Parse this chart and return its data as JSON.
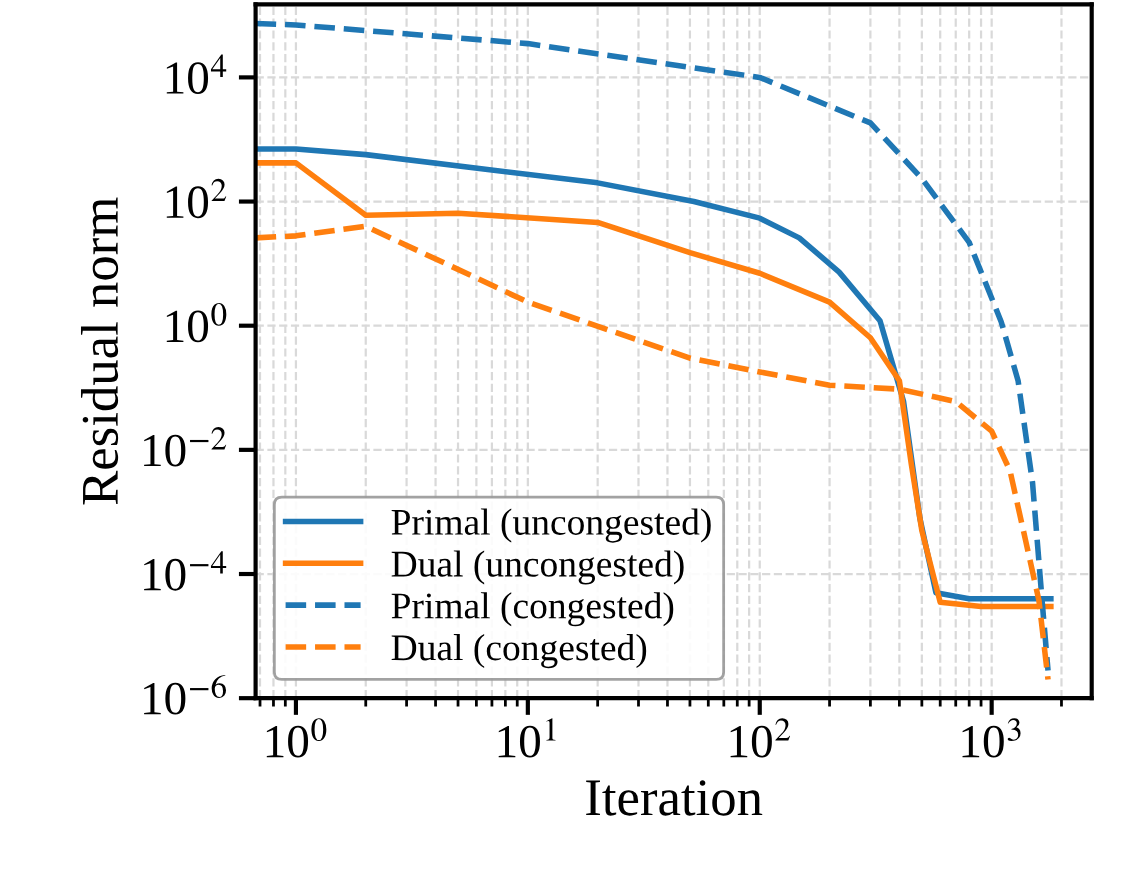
{
  "chart_data": {
    "type": "line",
    "xlabel": "Iteration",
    "ylabel": "Residual norm",
    "log": "xy",
    "grid": true,
    "legend": "bottom left",
    "xlim": [
      0.67,
      2700
    ],
    "ylim": [
      1e-06,
      150000
    ],
    "xticks": [
      {
        "value": 1,
        "label": "10$^{0}$"
      },
      {
        "value": 10,
        "label": "10$^{1}$"
      },
      {
        "value": 100,
        "label": "10$^{2}$"
      },
      {
        "value": 1000,
        "label": "10$^{3}$"
      }
    ],
    "yticks": [
      {
        "value": 1e-06,
        "label": "10$^{−6}$"
      },
      {
        "value": 0.0001,
        "label": "10$^{−4}$"
      },
      {
        "value": 0.01,
        "label": "10$^{−2}$"
      },
      {
        "value": 1,
        "label": "10$^{0}$"
      },
      {
        "value": 100,
        "label": "10$^{2}$"
      },
      {
        "value": 10000,
        "label": "10$^{4}$"
      }
    ],
    "series": [
      {
        "name": "Primal (uncongested)",
        "color": "#1f77b4",
        "line_style": "solid",
        "x": [
          0.67,
          1,
          2,
          20,
          52,
          100,
          148,
          220,
          330,
          417,
          490,
          575,
          800,
          1200,
          1800
        ],
        "values": [
          700,
          700,
          570,
          200,
          100,
          54,
          26,
          7.3,
          1.2,
          0.06,
          0.0008,
          5e-05,
          4e-05,
          4e-05,
          4e-05
        ]
      },
      {
        "name": "Dual (uncongested)",
        "color": "#ff7f0e",
        "line_style": "solid",
        "x": [
          0.67,
          1,
          2,
          5,
          20,
          50,
          100,
          200,
          300,
          400,
          450,
          500,
          600,
          900,
          1800
        ],
        "values": [
          420,
          420,
          60,
          65,
          46,
          15,
          7,
          2.4,
          0.64,
          0.13,
          0.006,
          0.0005,
          3.5e-05,
          3e-05,
          3e-05
        ]
      },
      {
        "name": "Primal (congested)",
        "color": "#1f77b4",
        "line_style": "dashed",
        "x": [
          0.67,
          1,
          10,
          100,
          300,
          500,
          800,
          1100,
          1300,
          1500,
          1650,
          1750
        ],
        "values": [
          74000,
          70000,
          35000,
          10000,
          1850,
          235,
          22,
          1.15,
          0.13,
          0.003,
          3.7e-05,
          2.8e-06
        ]
      },
      {
        "name": "Dual (congested)",
        "color": "#ff7f0e",
        "line_style": "dashed",
        "x": [
          0.67,
          1,
          2,
          10,
          50,
          100,
          200,
          400,
          700,
          1000,
          1200,
          1400,
          1600,
          1750
        ],
        "values": [
          26,
          28,
          40,
          2.4,
          0.3,
          0.18,
          0.11,
          0.095,
          0.06,
          0.02,
          0.0046,
          0.00035,
          3.7e-05,
          2e-06
        ]
      }
    ]
  }
}
